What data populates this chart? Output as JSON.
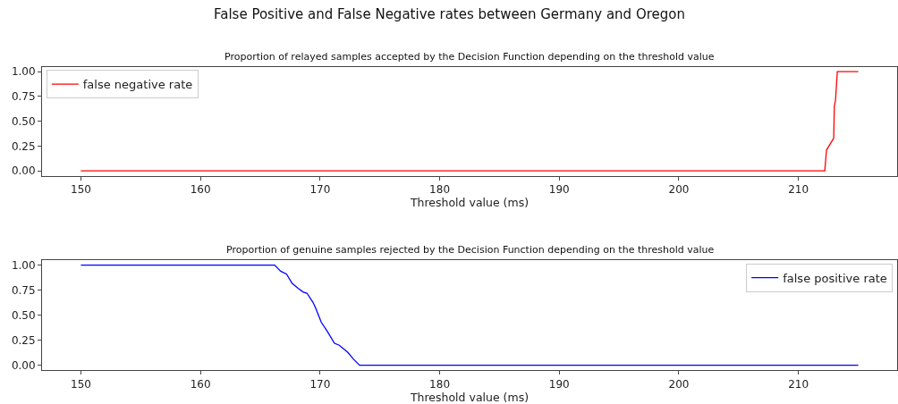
{
  "chart_data": [
    {
      "type": "line",
      "title": "Proportion of relayed samples accepted by the Decision Function depending on the threshold value",
      "annotations": [
        "False Positive and False Negative rates between Germany and Oregon"
      ],
      "xlabel": "Threshold value (ms)",
      "xlim": [
        146.75,
        218.25
      ],
      "xticks": [
        150,
        160,
        170,
        180,
        190,
        200,
        210
      ],
      "ylim": [
        -0.05,
        1.05
      ],
      "yticks": [
        {
          "value": 0,
          "label": "0.00"
        },
        {
          "value": 0.25,
          "label": "0.25"
        },
        {
          "value": 0.5,
          "label": "0.50"
        },
        {
          "value": 0.75,
          "label": "0.75"
        },
        {
          "value": 1,
          "label": "1.00"
        }
      ],
      "legend": "top left",
      "marker": "none",
      "line_style": "solid",
      "series": [
        {
          "name": "false negative rate",
          "color": "#ff0000",
          "x": [
            150,
            212.2,
            212.35,
            212.8,
            212.95,
            213.0,
            213.1,
            213.25,
            215
          ],
          "values": [
            0,
            0,
            0.21,
            0.3,
            0.33,
            0.65,
            0.71,
            1.0,
            1.0
          ]
        }
      ]
    },
    {
      "type": "line",
      "title": "Proportion of genuine samples rejected by the Decision Function depending on the threshold value",
      "xlabel": "Threshold value (ms)",
      "xlim": [
        146.75,
        218.25
      ],
      "xticks": [
        150,
        160,
        170,
        180,
        190,
        200,
        210
      ],
      "ylim": [
        -0.05,
        1.05
      ],
      "yticks": [
        {
          "value": 0,
          "label": "0.00"
        },
        {
          "value": 0.25,
          "label": "0.25"
        },
        {
          "value": 0.5,
          "label": "0.50"
        },
        {
          "value": 0.75,
          "label": "0.75"
        },
        {
          "value": 1,
          "label": "1.00"
        }
      ],
      "legend": "top right",
      "marker": "none",
      "line_style": "solid",
      "series": [
        {
          "name": "false positive rate",
          "color": "#0000ff",
          "x": [
            150,
            166.2,
            166.7,
            167.2,
            167.65,
            168.15,
            168.6,
            168.9,
            169.4,
            169.6,
            170.1,
            170.6,
            171.2,
            171.6,
            172.3,
            172.8,
            173.3,
            215
          ],
          "values": [
            1.0,
            1.0,
            0.94,
            0.91,
            0.82,
            0.77,
            0.73,
            0.72,
            0.63,
            0.58,
            0.43,
            0.34,
            0.22,
            0.2,
            0.13,
            0.06,
            0.0,
            0.0
          ]
        }
      ]
    }
  ]
}
